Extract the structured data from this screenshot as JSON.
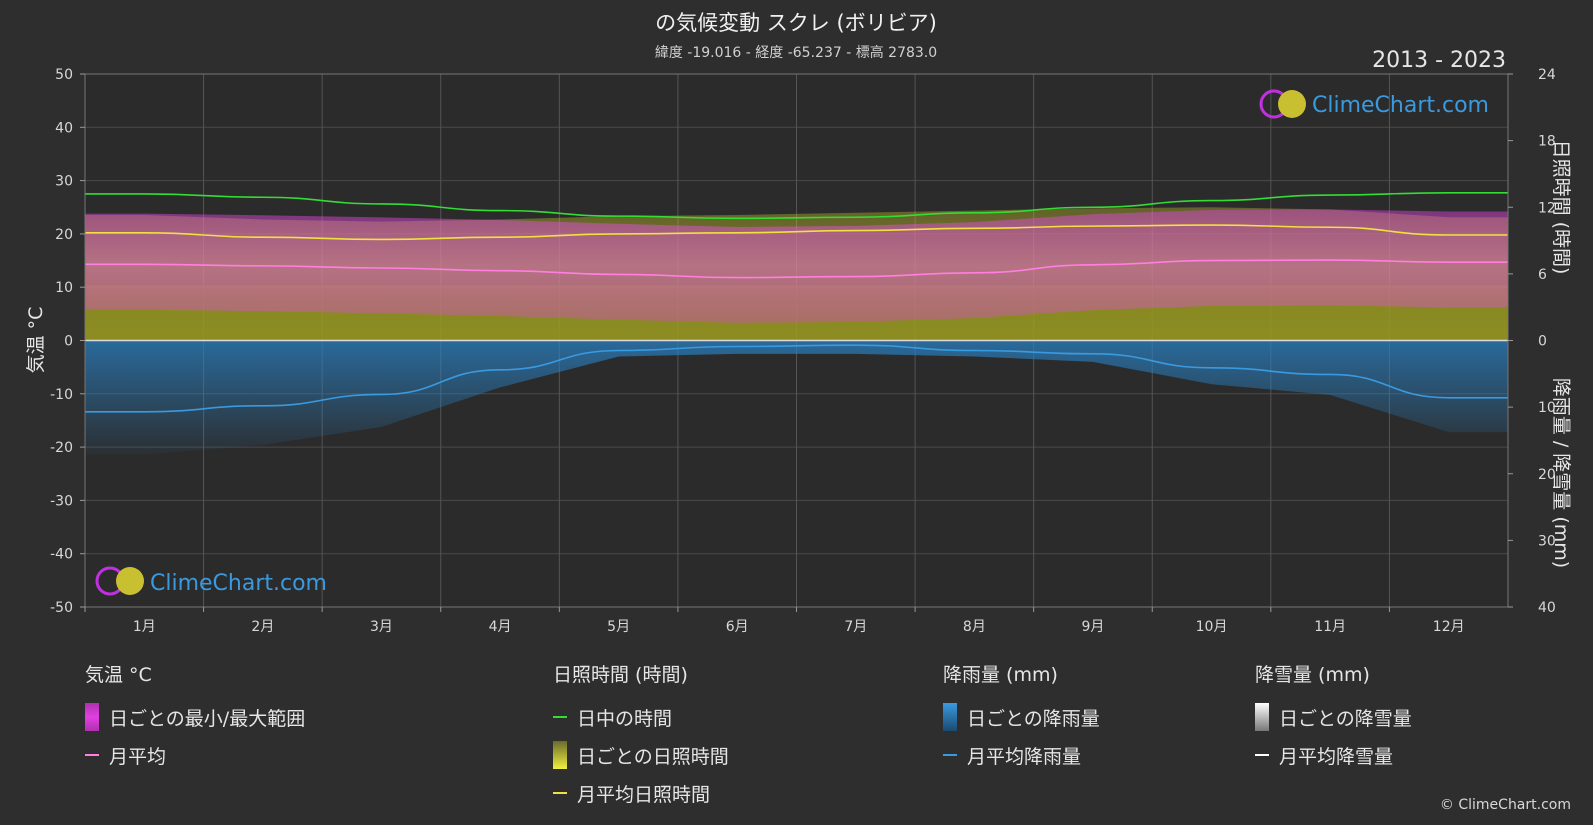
{
  "header": {
    "title": "の気候変動 スクレ (ボリビア)",
    "subtitle": "緯度 -19.016 - 経度 -65.237 - 標高 2783.0",
    "period": "2013 - 2023"
  },
  "watermark": "ClimeChart.com",
  "copyright": "© ClimeChart.com",
  "colors": {
    "background": "#2e2e2e",
    "temp_range": "#e040e0",
    "temp_avg": "#ff7ee0",
    "daylight": "#33dd33",
    "sunshine_daily": "#c8c82a",
    "sunshine_avg": "#f0e040",
    "rain_daily": "#2a7fc0",
    "rain_avg": "#3a9ae0",
    "snow_avg": "#ffffff"
  },
  "chart_data": {
    "type": "line",
    "categories": [
      "1月",
      "2月",
      "3月",
      "4月",
      "5月",
      "6月",
      "7月",
      "8月",
      "9月",
      "10月",
      "11月",
      "12月"
    ],
    "axes": {
      "left": {
        "label": "気温 °C",
        "ticks": [
          50,
          40,
          30,
          20,
          10,
          0,
          -10,
          -20,
          -30,
          -40,
          -50
        ],
        "range": [
          -50,
          50
        ]
      },
      "right_top": {
        "label": "日照時間 (時間)",
        "ticks": [
          24,
          18,
          12,
          6,
          0
        ],
        "range": [
          0,
          24
        ]
      },
      "right_bottom": {
        "label": "降雨量 / 降雪量 (mm)",
        "ticks": [
          0,
          10,
          20,
          30,
          40
        ],
        "range": [
          0,
          40
        ]
      }
    },
    "series": [
      {
        "name": "日中の時間",
        "unit": "hours",
        "values": [
          13.2,
          12.9,
          12.3,
          11.7,
          11.2,
          11.0,
          11.1,
          11.5,
          12.0,
          12.6,
          13.1,
          13.3
        ]
      },
      {
        "name": "月平均日照時間",
        "unit": "hours",
        "values": [
          9.7,
          9.3,
          9.1,
          9.3,
          9.6,
          9.7,
          9.9,
          10.1,
          10.3,
          10.4,
          10.2,
          9.5
        ]
      },
      {
        "name": "月平均",
        "unit": "°C",
        "values": [
          14.3,
          14.0,
          13.6,
          13.1,
          12.4,
          11.8,
          12.0,
          12.7,
          14.2,
          15.0,
          15.1,
          14.7
        ]
      },
      {
        "name": "月平均降雨量",
        "unit": "mm",
        "values": [
          10.7,
          9.8,
          8.1,
          4.4,
          1.5,
          0.9,
          0.7,
          1.5,
          2.0,
          4.1,
          5.1,
          8.6
        ]
      },
      {
        "name": "月平均降雪量",
        "unit": "mm",
        "values": [
          0,
          0,
          0,
          0,
          0,
          0,
          0,
          0,
          0,
          0,
          0,
          0
        ]
      }
    ],
    "daily_temp_range_approx": {
      "min_c": 2,
      "max_c": 25
    },
    "daily_sunshine_approx_hours": {
      "min": 6,
      "max": 12
    }
  },
  "legend": {
    "temperature": {
      "title": "気温 °C",
      "items": [
        "日ごとの最小/最大範囲",
        "月平均"
      ]
    },
    "sunshine": {
      "title": "日照時間 (時間)",
      "items": [
        "日中の時間",
        "日ごとの日照時間",
        "月平均日照時間"
      ]
    },
    "rain": {
      "title": "降雨量 (mm)",
      "items": [
        "日ごとの降雨量",
        "月平均降雨量"
      ]
    },
    "snow": {
      "title": "降雪量 (mm)",
      "items": [
        "日ごとの降雪量",
        "月平均降雪量"
      ]
    }
  }
}
